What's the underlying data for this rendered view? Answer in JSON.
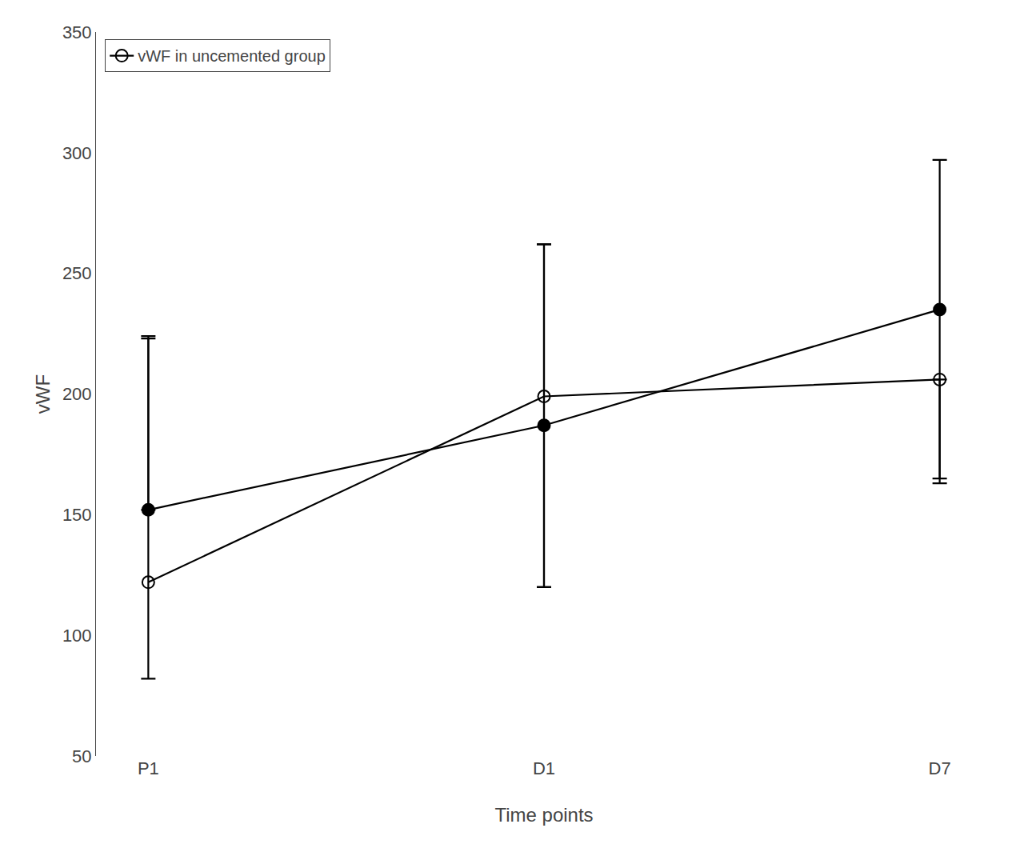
{
  "chart_data": {
    "type": "line",
    "xlabel": "Time points",
    "ylabel": "vWF",
    "categories": [
      "P1",
      "D1",
      "D7"
    ],
    "series": [
      {
        "name": "vWF in uncemented group",
        "color": "#000000",
        "marker": "circle-open",
        "values": [
          122,
          199,
          206
        ],
        "error_upper": [
          101,
          63,
          0
        ],
        "error_lower": [
          40,
          79,
          43
        ]
      },
      {
        "color": "#000000",
        "marker": "circle",
        "values": [
          152,
          187,
          235
        ],
        "error_upper": [
          72,
          75,
          62
        ],
        "error_lower": [
          0,
          67,
          70
        ]
      }
    ],
    "ylim": [
      50,
      350
    ],
    "yticks": [
      50,
      100,
      150,
      200,
      250,
      300,
      350
    ],
    "grid": false,
    "legend": "upper left"
  }
}
